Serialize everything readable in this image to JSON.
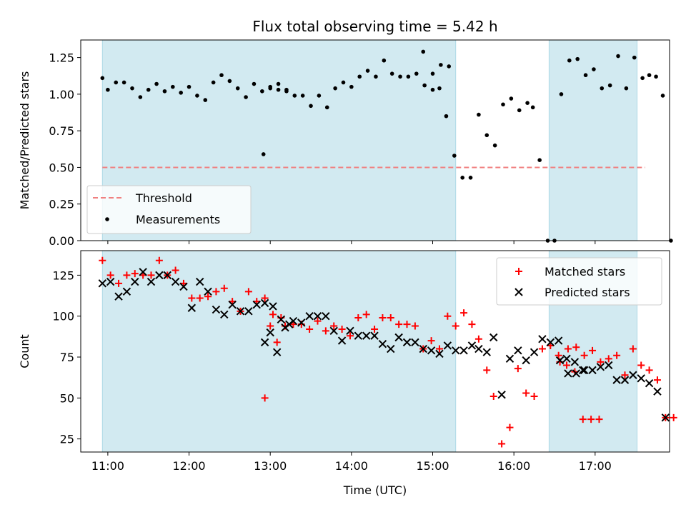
{
  "chart_data": [
    {
      "type": "scatter",
      "title": "Flux total observing time = 5.42 h",
      "xlabel": "",
      "ylabel": "Matched/Predicted stars",
      "xlim": [
        "10:40",
        "17:55"
      ],
      "ylim": [
        0,
        1.37
      ],
      "yticks": [
        0.0,
        0.25,
        0.5,
        0.75,
        1.0,
        1.25
      ],
      "ytick_labels": [
        "0.00",
        "0.25",
        "0.50",
        "0.75",
        "1.00",
        "1.25"
      ],
      "xticks": [
        "11:00",
        "12:00",
        "13:00",
        "14:00",
        "15:00",
        "16:00",
        "17:00"
      ],
      "grid": false,
      "legend_placement": "lower-left",
      "shaded_intervals": [
        [
          "10:56",
          "15:17"
        ],
        [
          "16:26",
          "17:31"
        ]
      ],
      "shade_color": "#add8e6",
      "threshold": {
        "name": "Threshold",
        "value": 0.5,
        "x_range": [
          "10:56",
          "17:37"
        ],
        "color": "#f08080",
        "style": "dashed"
      },
      "series": [
        {
          "name": "Measurements",
          "color": "#000000",
          "marker": "dot",
          "points": [
            [
              "10:56",
              1.11
            ],
            [
              "11:00",
              1.03
            ],
            [
              "11:06",
              1.08
            ],
            [
              "11:12",
              1.08
            ],
            [
              "11:18",
              1.04
            ],
            [
              "11:24",
              0.98
            ],
            [
              "11:30",
              1.03
            ],
            [
              "11:36",
              1.07
            ],
            [
              "11:42",
              1.02
            ],
            [
              "11:48",
              1.05
            ],
            [
              "11:54",
              1.01
            ],
            [
              "12:00",
              1.05
            ],
            [
              "12:06",
              0.99
            ],
            [
              "12:12",
              0.96
            ],
            [
              "12:18",
              1.08
            ],
            [
              "12:24",
              1.13
            ],
            [
              "12:30",
              1.09
            ],
            [
              "12:36",
              1.04
            ],
            [
              "12:42",
              0.98
            ],
            [
              "12:48",
              1.07
            ],
            [
              "12:54",
              1.02
            ],
            [
              "13:00",
              1.05
            ],
            [
              "13:06",
              1.03
            ],
            [
              "13:12",
              1.03
            ],
            [
              "12:55",
              0.59
            ],
            [
              "13:00",
              1.04
            ],
            [
              "13:06",
              1.07
            ],
            [
              "13:12",
              1.02
            ],
            [
              "13:18",
              0.99
            ],
            [
              "13:24",
              0.99
            ],
            [
              "13:30",
              0.92
            ],
            [
              "13:36",
              0.99
            ],
            [
              "13:42",
              0.91
            ],
            [
              "13:48",
              1.04
            ],
            [
              "13:54",
              1.08
            ],
            [
              "14:00",
              1.05
            ],
            [
              "14:06",
              1.12
            ],
            [
              "14:12",
              1.16
            ],
            [
              "14:18",
              1.12
            ],
            [
              "14:24",
              1.23
            ],
            [
              "14:30",
              1.14
            ],
            [
              "14:36",
              1.12
            ],
            [
              "14:42",
              1.12
            ],
            [
              "14:48",
              1.14
            ],
            [
              "14:54",
              1.06
            ],
            [
              "15:00",
              1.03
            ],
            [
              "15:06",
              1.2
            ],
            [
              "15:12",
              1.19
            ],
            [
              "14:53",
              1.29
            ],
            [
              "15:00",
              1.14
            ],
            [
              "15:05",
              1.04
            ],
            [
              "15:10",
              0.85
            ],
            [
              "15:16",
              0.58
            ],
            [
              "15:22",
              0.43
            ],
            [
              "15:28",
              0.43
            ],
            [
              "15:34",
              0.86
            ],
            [
              "15:40",
              0.72
            ],
            [
              "15:46",
              0.65
            ],
            [
              "15:52",
              0.93
            ],
            [
              "15:58",
              0.97
            ],
            [
              "16:04",
              0.89
            ],
            [
              "16:10",
              0.94
            ],
            [
              "16:14",
              0.91
            ],
            [
              "16:19",
              0.55
            ],
            [
              "16:25",
              0.0
            ],
            [
              "16:30",
              0.0
            ],
            [
              "16:35",
              1.0
            ],
            [
              "16:41",
              1.23
            ],
            [
              "16:47",
              1.24
            ],
            [
              "16:53",
              1.13
            ],
            [
              "16:59",
              1.17
            ],
            [
              "17:05",
              1.04
            ],
            [
              "17:11",
              1.06
            ],
            [
              "17:17",
              1.26
            ],
            [
              "17:23",
              1.04
            ],
            [
              "17:29",
              1.25
            ],
            [
              "17:35",
              1.11
            ],
            [
              "17:40",
              1.13
            ],
            [
              "17:45",
              1.12
            ],
            [
              "17:50",
              0.99
            ],
            [
              "17:56",
              0.0
            ]
          ]
        }
      ]
    },
    {
      "type": "scatter",
      "title": "",
      "xlabel": "Time (UTC)",
      "ylabel": "Count",
      "xlim": [
        "10:40",
        "17:55"
      ],
      "ylim": [
        17,
        140
      ],
      "yticks": [
        25,
        50,
        75,
        100,
        125
      ],
      "ytick_labels": [
        "25",
        "50",
        "75",
        "100",
        "125"
      ],
      "xticks": [
        "11:00",
        "12:00",
        "13:00",
        "14:00",
        "15:00",
        "16:00",
        "17:00"
      ],
      "grid": false,
      "legend_placement": "upper-right",
      "shaded_intervals": [
        [
          "10:56",
          "15:17"
        ],
        [
          "16:26",
          "17:31"
        ]
      ],
      "shade_color": "#add8e6",
      "series": [
        {
          "name": "Matched stars",
          "color": "#ff0000",
          "marker": "plus",
          "points": [
            [
              "10:56",
              134
            ],
            [
              "11:02",
              125
            ],
            [
              "11:08",
              120
            ],
            [
              "11:14",
              125
            ],
            [
              "11:20",
              126
            ],
            [
              "11:26",
              125
            ],
            [
              "11:32",
              125
            ],
            [
              "11:38",
              134
            ],
            [
              "11:44",
              125
            ],
            [
              "11:50",
              128
            ],
            [
              "11:56",
              120
            ],
            [
              "12:02",
              111
            ],
            [
              "12:08",
              111
            ],
            [
              "12:14",
              112
            ],
            [
              "12:20",
              115
            ],
            [
              "12:26",
              117
            ],
            [
              "12:32",
              109
            ],
            [
              "12:38",
              103
            ],
            [
              "12:44",
              115
            ],
            [
              "12:50",
              109
            ],
            [
              "12:56",
              111
            ],
            [
              "13:02",
              101
            ],
            [
              "13:08",
              99
            ],
            [
              "12:56",
              50
            ],
            [
              "13:00",
              94
            ],
            [
              "13:05",
              84
            ],
            [
              "13:11",
              94
            ],
            [
              "13:17",
              95
            ],
            [
              "13:23",
              95
            ],
            [
              "13:29",
              92
            ],
            [
              "13:35",
              97
            ],
            [
              "13:41",
              91
            ],
            [
              "13:47",
              94
            ],
            [
              "13:53",
              92
            ],
            [
              "13:59",
              88
            ],
            [
              "14:05",
              99
            ],
            [
              "14:11",
              101
            ],
            [
              "14:17",
              92
            ],
            [
              "14:23",
              99
            ],
            [
              "14:29",
              99
            ],
            [
              "14:35",
              95
            ],
            [
              "14:41",
              95
            ],
            [
              "14:47",
              94
            ],
            [
              "14:53",
              80
            ],
            [
              "14:59",
              85
            ],
            [
              "15:05",
              80
            ],
            [
              "15:11",
              100
            ],
            [
              "15:17",
              94
            ],
            [
              "15:23",
              102
            ],
            [
              "15:29",
              95
            ],
            [
              "15:34",
              86
            ],
            [
              "15:40",
              67
            ],
            [
              "15:45",
              51
            ],
            [
              "15:51",
              22
            ],
            [
              "15:57",
              32
            ],
            [
              "16:03",
              68
            ],
            [
              "16:09",
              53
            ],
            [
              "16:15",
              51
            ],
            [
              "16:21",
              80
            ],
            [
              "16:27",
              82
            ],
            [
              "16:33",
              76
            ],
            [
              "16:39",
              70
            ],
            [
              "16:45",
              66
            ],
            [
              "16:51",
              37
            ],
            [
              "16:57",
              37
            ],
            [
              "17:03",
              37
            ],
            [
              "16:34",
              72
            ],
            [
              "16:40",
              80
            ],
            [
              "16:46",
              81
            ],
            [
              "16:52",
              76
            ],
            [
              "16:58",
              79
            ],
            [
              "17:04",
              72
            ],
            [
              "17:10",
              74
            ],
            [
              "17:16",
              76
            ],
            [
              "17:22",
              64
            ],
            [
              "17:28",
              80
            ],
            [
              "17:34",
              70
            ],
            [
              "17:40",
              67
            ],
            [
              "17:46",
              61
            ],
            [
              "17:52",
              38
            ],
            [
              "17:58",
              38
            ]
          ]
        },
        {
          "name": "Predicted stars",
          "color": "#000000",
          "marker": "x",
          "points": [
            [
              "10:56",
              120
            ],
            [
              "11:02",
              121
            ],
            [
              "11:08",
              112
            ],
            [
              "11:14",
              115
            ],
            [
              "11:20",
              121
            ],
            [
              "11:26",
              127
            ],
            [
              "11:32",
              121
            ],
            [
              "11:38",
              125
            ],
            [
              "11:44",
              125
            ],
            [
              "11:50",
              121
            ],
            [
              "11:56",
              118
            ],
            [
              "12:02",
              105
            ],
            [
              "12:08",
              121
            ],
            [
              "12:14",
              115
            ],
            [
              "12:20",
              104
            ],
            [
              "12:26",
              101
            ],
            [
              "12:32",
              107
            ],
            [
              "12:38",
              103
            ],
            [
              "12:44",
              103
            ],
            [
              "12:50",
              107
            ],
            [
              "12:56",
              108
            ],
            [
              "13:02",
              106
            ],
            [
              "13:08",
              98
            ],
            [
              "13:14",
              95
            ],
            [
              "12:56",
              84
            ],
            [
              "13:00",
              90
            ],
            [
              "13:05",
              78
            ],
            [
              "13:11",
              93
            ],
            [
              "13:17",
              97
            ],
            [
              "13:23",
              96
            ],
            [
              "13:29",
              100
            ],
            [
              "13:35",
              100
            ],
            [
              "13:41",
              100
            ],
            [
              "13:47",
              91
            ],
            [
              "13:53",
              85
            ],
            [
              "13:59",
              91
            ],
            [
              "14:05",
              88
            ],
            [
              "14:11",
              88
            ],
            [
              "14:17",
              88
            ],
            [
              "14:23",
              83
            ],
            [
              "14:29",
              80
            ],
            [
              "14:35",
              87
            ],
            [
              "14:41",
              84
            ],
            [
              "14:47",
              84
            ],
            [
              "14:53",
              80
            ],
            [
              "14:59",
              79
            ],
            [
              "15:05",
              77
            ],
            [
              "15:11",
              82
            ],
            [
              "15:17",
              79
            ],
            [
              "15:23",
              79
            ],
            [
              "15:29",
              82
            ],
            [
              "15:34",
              80
            ],
            [
              "15:40",
              78
            ],
            [
              "15:45",
              87
            ],
            [
              "15:51",
              52
            ],
            [
              "15:57",
              74
            ],
            [
              "16:03",
              79
            ],
            [
              "16:09",
              73
            ],
            [
              "16:15",
              78
            ],
            [
              "16:21",
              86
            ],
            [
              "16:27",
              84
            ],
            [
              "16:33",
              85
            ],
            [
              "16:39",
              74
            ],
            [
              "16:45",
              72
            ],
            [
              "16:51",
              67
            ],
            [
              "16:34",
              73
            ],
            [
              "16:40",
              65
            ],
            [
              "16:46",
              65
            ],
            [
              "16:52",
              67
            ],
            [
              "16:58",
              67
            ],
            [
              "17:04",
              69
            ],
            [
              "17:10",
              70
            ],
            [
              "17:16",
              61
            ],
            [
              "17:22",
              61
            ],
            [
              "17:28",
              64
            ],
            [
              "17:34",
              62
            ],
            [
              "17:40",
              59
            ],
            [
              "17:46",
              54
            ],
            [
              "17:52",
              38
            ]
          ]
        }
      ]
    }
  ]
}
